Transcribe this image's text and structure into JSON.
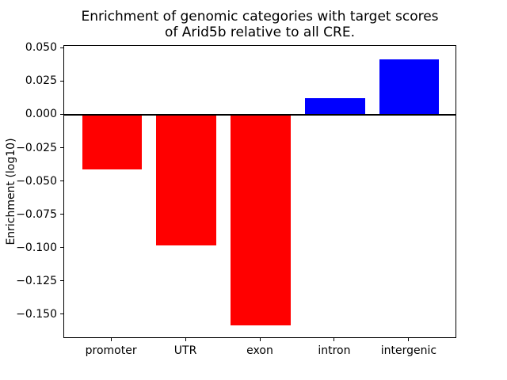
{
  "figure": {
    "title": "Enrichment of genomic categories with target scores\nof Arid5b relative to all CRE.",
    "ylabel": "Enrichment (log10)"
  },
  "chart_data": {
    "type": "bar",
    "title": "Enrichment of genomic categories with target scores of Arid5b relative to all CRE.",
    "xlabel": "",
    "ylabel": "Enrichment (log10)",
    "categories": [
      "promoter",
      "UTR",
      "exon",
      "intron",
      "intergenic"
    ],
    "values": [
      -0.041,
      -0.098,
      -0.158,
      0.013,
      0.042
    ],
    "bar_colors": [
      "#ff0000",
      "#ff0000",
      "#ff0000",
      "#0000ff",
      "#0000ff"
    ],
    "negative_color": "#ff0000",
    "positive_color": "#0000ff",
    "ylim": [
      -0.168,
      0.052
    ],
    "yticks": [
      0.05,
      0.025,
      0.0,
      -0.025,
      -0.05,
      -0.075,
      -0.1,
      -0.125,
      -0.15
    ],
    "ytick_labels": [
      "0.050",
      "0.025",
      "0.000",
      "−0.025",
      "−0.050",
      "−0.075",
      "−0.100",
      "−0.125",
      "−0.150"
    ],
    "grid": false,
    "legend": null,
    "zero_line": true,
    "bar_width_fraction": 0.8
  }
}
